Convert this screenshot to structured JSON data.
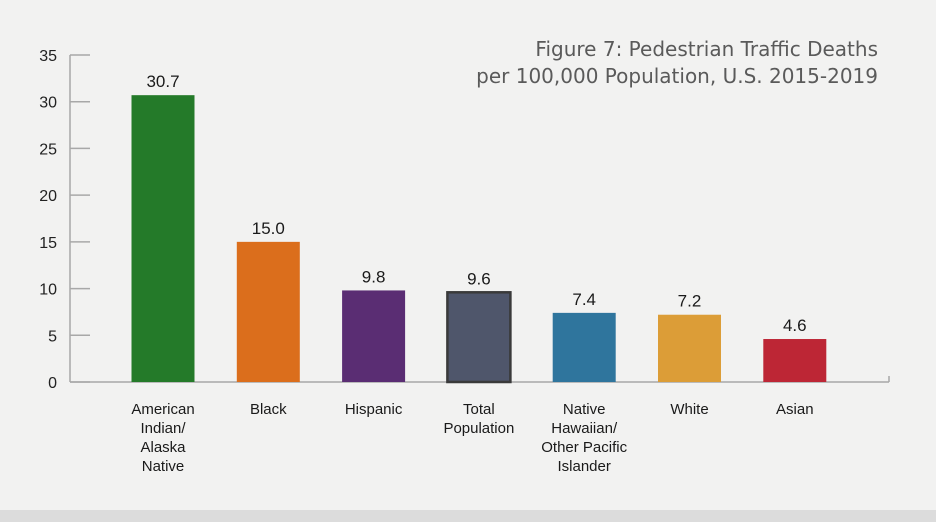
{
  "chart_data": {
    "type": "bar",
    "title": [
      "Figure 7: Pedestrian Traffic Deaths",
      "per 100,000 Population, U.S. 2015-2019"
    ],
    "categories": [
      [
        "American",
        "Indian/",
        "Alaska",
        "Native"
      ],
      [
        "Black"
      ],
      [
        "Hispanic"
      ],
      [
        "Total",
        "Population"
      ],
      [
        "Native",
        "Hawaiian/",
        "Other Pacific",
        "Islander"
      ],
      [
        "White"
      ],
      [
        "Asian"
      ]
    ],
    "values": [
      30.7,
      15.0,
      9.8,
      9.6,
      7.4,
      7.2,
      4.6
    ],
    "data_labels": [
      "30.7",
      "15.0",
      "9.8",
      "9.6",
      "7.4",
      "7.2",
      "4.6"
    ],
    "colors": [
      "#247a29",
      "#db6e1c",
      "#5a2d73",
      "#4f566b",
      "#2f759d",
      "#dc9d37",
      "#bd2635"
    ],
    "xlabel": "",
    "ylabel": "",
    "ylim": [
      0,
      35
    ],
    "yticks": [
      0,
      5,
      10,
      15,
      20,
      25,
      30,
      35
    ],
    "grid": false,
    "legend": "none"
  }
}
